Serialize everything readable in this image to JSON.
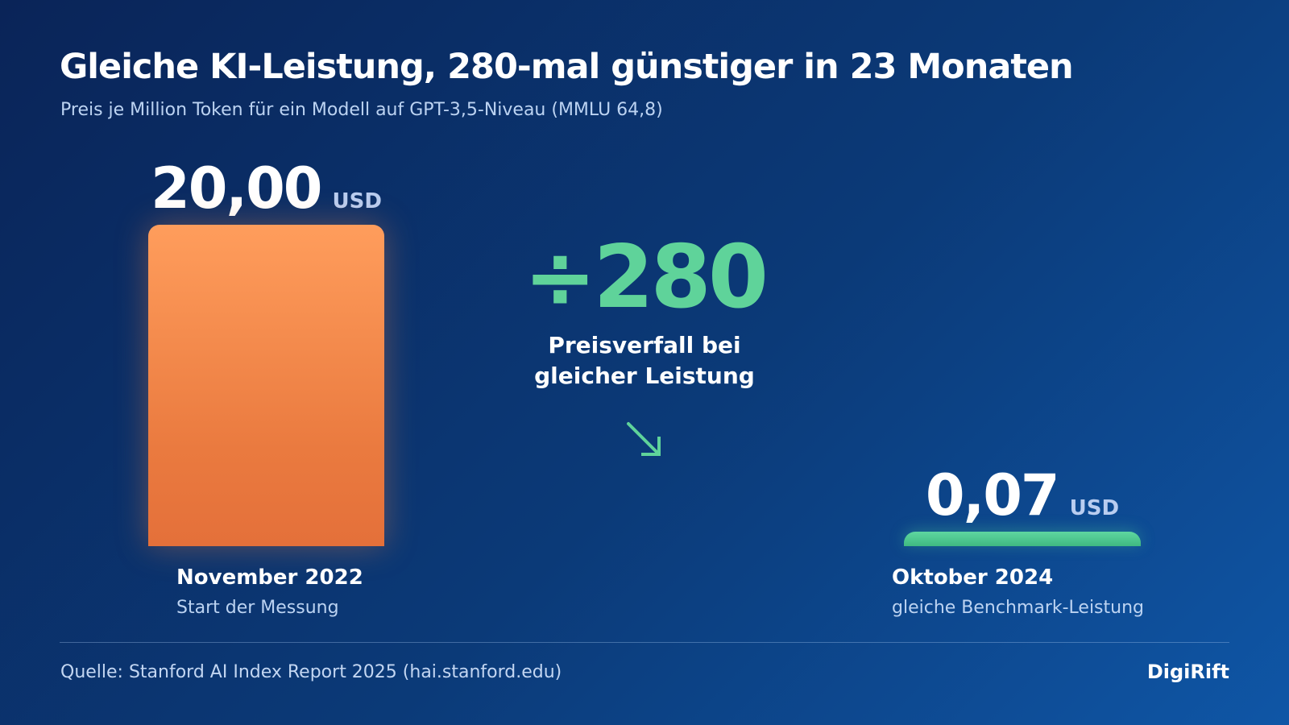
{
  "title": "Gleiche KI-Leistung, 280-mal günstiger in 23 Monaten",
  "subtitle": "Preis je Million Token für ein Modell auf GPT-3,5-Niveau (MMLU 64,8)",
  "chart_data": {
    "type": "bar",
    "categories": [
      "November 2022",
      "Oktober 2024"
    ],
    "category_sublabels": [
      "Start der Messung",
      "gleiche Benchmark-Leistung"
    ],
    "values": [
      20.0,
      0.07
    ],
    "value_labels": [
      "20,00",
      "0,07"
    ],
    "unit": "USD",
    "bar_colors": [
      "#f08a4b",
      "#4cc88e"
    ],
    "grid": false,
    "ylim": [
      0,
      20
    ]
  },
  "callout": {
    "factor": "÷280",
    "caption_line1": "Preisverfall bei",
    "caption_line2": "gleicher Leistung",
    "color": "#5fd39a",
    "icon": "arrow-down-right-icon"
  },
  "footer": {
    "source": "Quelle: Stanford AI Index Report 2025 (hai.stanford.edu)",
    "brand": "DigiRift"
  }
}
